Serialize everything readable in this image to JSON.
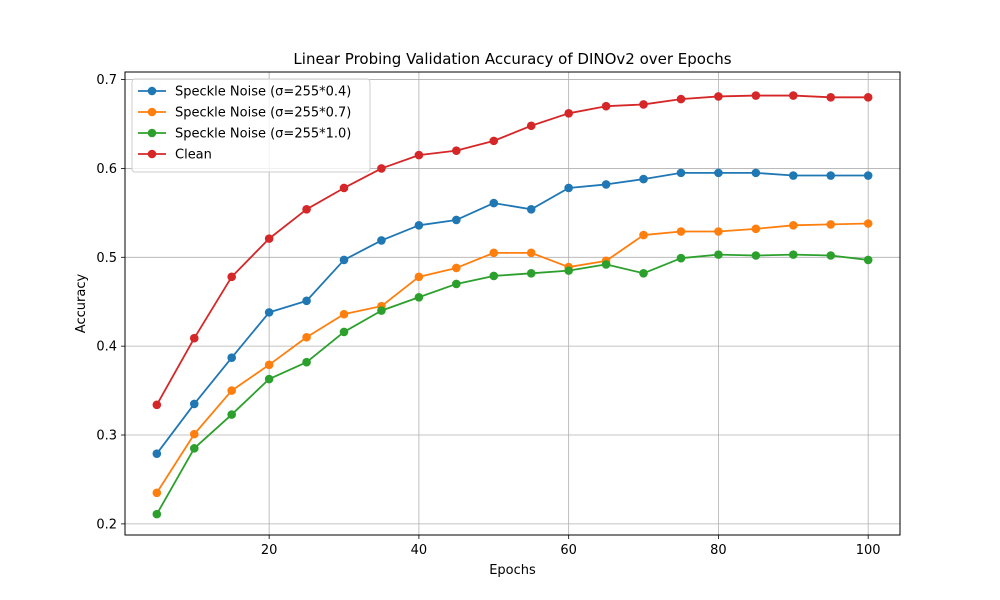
{
  "chart_data": {
    "type": "line",
    "title": "Linear Probing Validation Accuracy of DINOv2 over Epochs",
    "xlabel": "Epochs",
    "ylabel": "Accuracy",
    "xlim": [
      0.75,
      104.25
    ],
    "ylim": [
      0.1875,
      0.7085
    ],
    "x_ticks": [
      20,
      40,
      60,
      80,
      100
    ],
    "y_ticks": [
      0.2,
      0.3,
      0.4,
      0.5,
      0.6,
      0.7
    ],
    "y_tick_labels": [
      "0.2",
      "0.3",
      "0.4",
      "0.5",
      "0.6",
      "0.7"
    ],
    "grid": true,
    "legend_position": "top-left",
    "x": [
      5,
      10,
      15,
      20,
      25,
      30,
      35,
      40,
      45,
      50,
      55,
      60,
      65,
      70,
      75,
      80,
      85,
      90,
      95,
      100
    ],
    "series": [
      {
        "name": "Speckle Noise (σ=255*0.4)",
        "color": "#1f77b4",
        "values": [
          0.279,
          0.335,
          0.387,
          0.438,
          0.451,
          0.497,
          0.519,
          0.536,
          0.542,
          0.561,
          0.554,
          0.578,
          0.582,
          0.588,
          0.595,
          0.595,
          0.595,
          0.592,
          0.592,
          0.592
        ]
      },
      {
        "name": "Speckle Noise (σ=255*0.7)",
        "color": "#ff7f0e",
        "values": [
          0.235,
          0.301,
          0.35,
          0.379,
          0.41,
          0.436,
          0.445,
          0.478,
          0.488,
          0.505,
          0.505,
          0.489,
          0.496,
          0.525,
          0.529,
          0.529,
          0.532,
          0.536,
          0.537,
          0.538
        ]
      },
      {
        "name": "Speckle Noise (σ=255*1.0)",
        "color": "#2ca02c",
        "values": [
          0.211,
          0.285,
          0.323,
          0.363,
          0.382,
          0.416,
          0.44,
          0.455,
          0.47,
          0.479,
          0.482,
          0.485,
          0.492,
          0.482,
          0.499,
          0.503,
          0.502,
          0.503,
          0.502,
          0.497
        ]
      },
      {
        "name": "Clean",
        "color": "#d62728",
        "values": [
          0.334,
          0.409,
          0.478,
          0.521,
          0.554,
          0.578,
          0.6,
          0.615,
          0.62,
          0.631,
          0.648,
          0.662,
          0.67,
          0.672,
          0.678,
          0.681,
          0.682,
          0.682,
          0.68,
          0.68
        ]
      }
    ]
  }
}
